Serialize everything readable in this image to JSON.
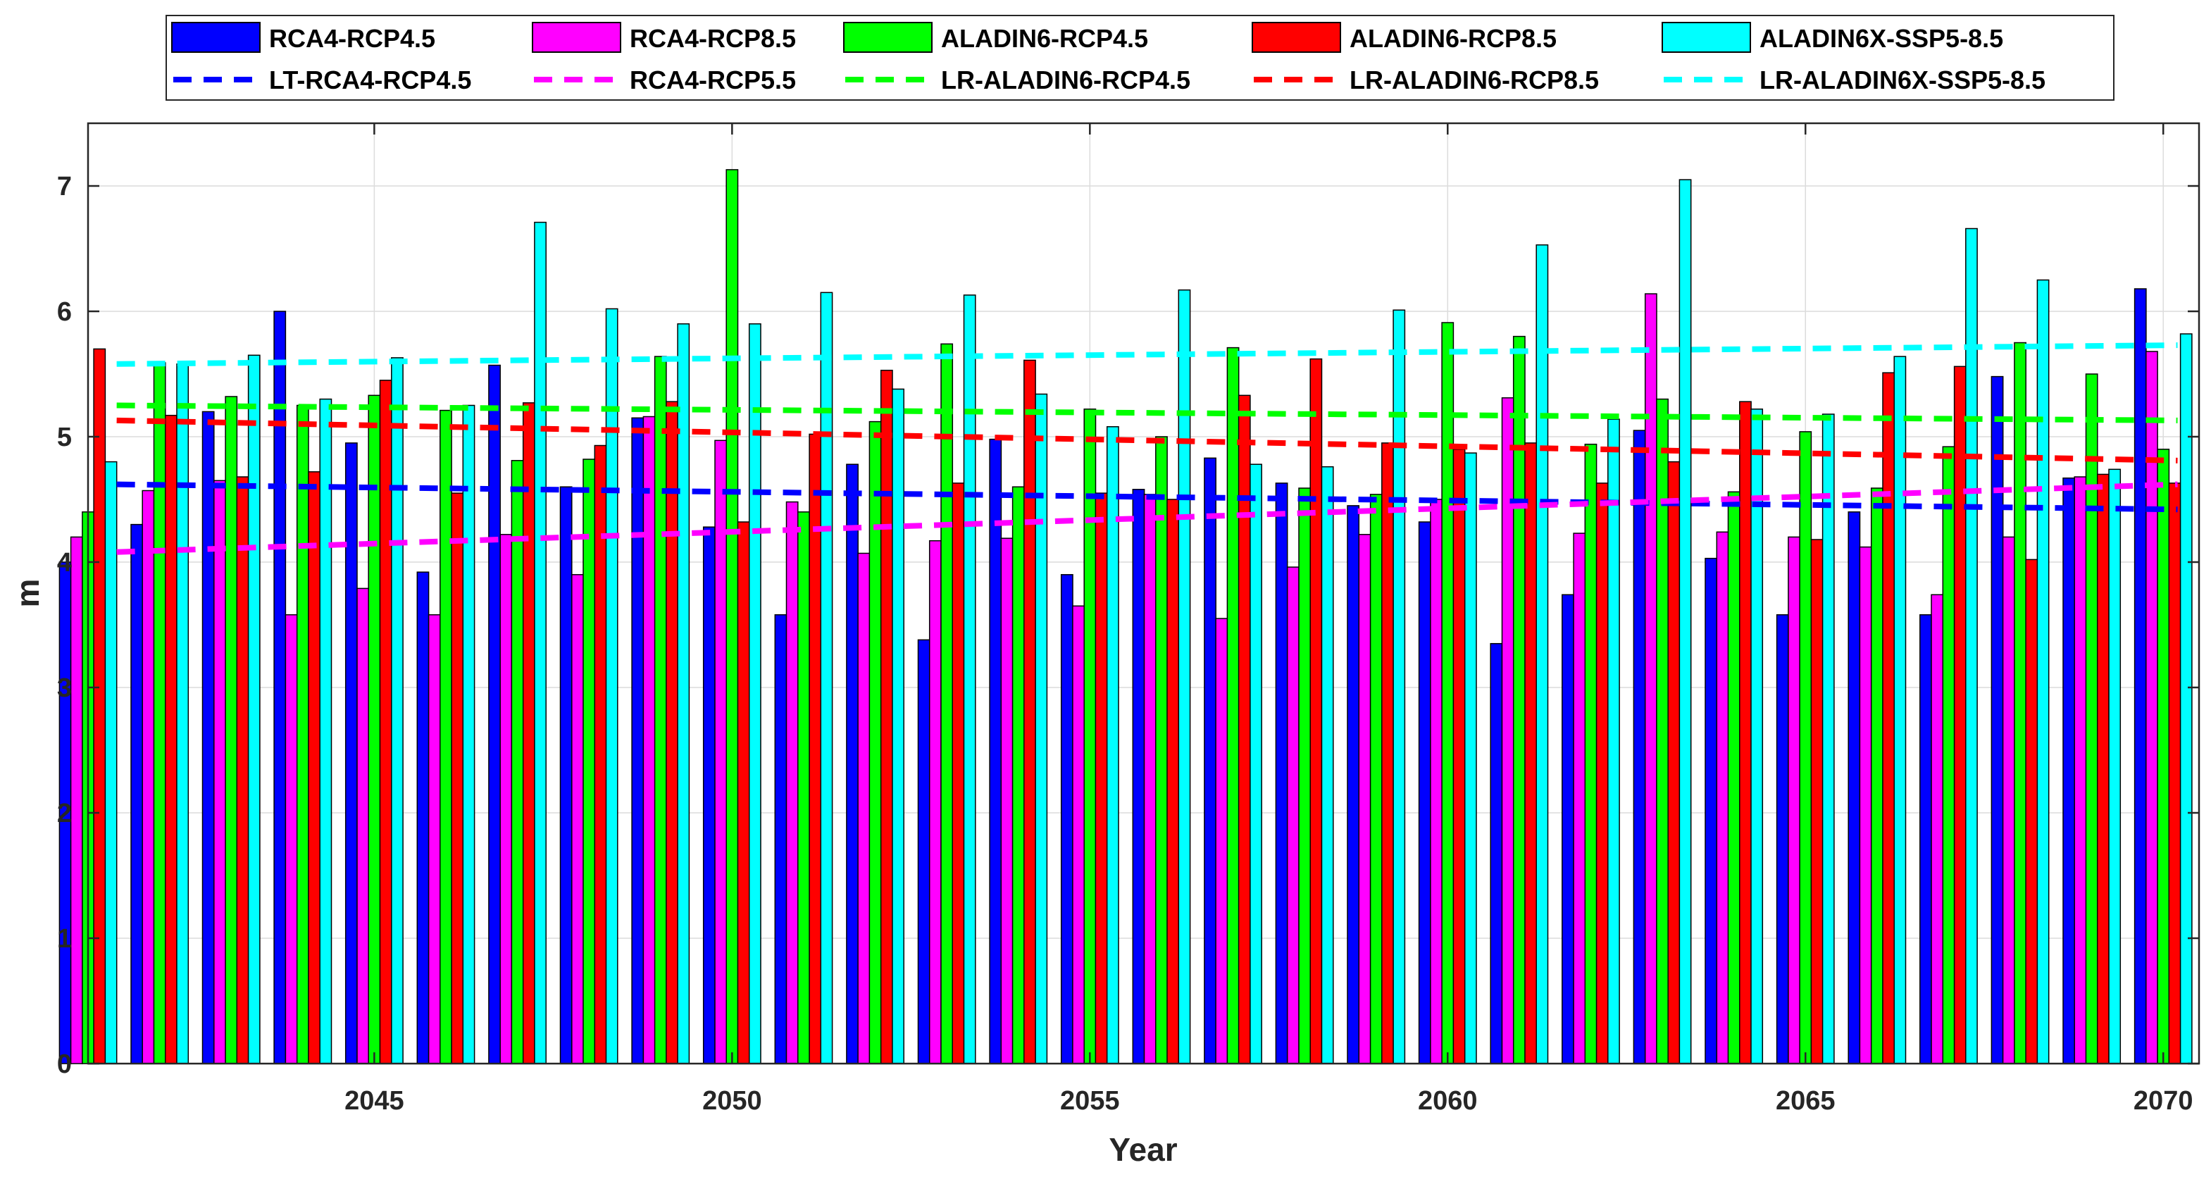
{
  "chart_data": {
    "type": "bar",
    "xlabel": "Year",
    "ylabel": "m",
    "ylim": [
      0,
      7.5
    ],
    "xlim": [
      2041,
      2070.5
    ],
    "x_ticks": [
      2045,
      2050,
      2055,
      2060,
      2065,
      2070
    ],
    "y_ticks": [
      0,
      1,
      2,
      3,
      4,
      5,
      6,
      7
    ],
    "grid": true,
    "legend_position": "top",
    "years": [
      2041,
      2042,
      2043,
      2044,
      2045,
      2046,
      2047,
      2048,
      2049,
      2050,
      2051,
      2052,
      2053,
      2054,
      2055,
      2056,
      2057,
      2058,
      2059,
      2060,
      2061,
      2062,
      2063,
      2064,
      2065,
      2066,
      2067,
      2068,
      2069,
      2070
    ],
    "series": [
      {
        "name": "RCA4-RCP4.5",
        "color": "#0000ff",
        "values": [
          4.0,
          4.3,
          5.2,
          6.0,
          4.95,
          3.92,
          5.57,
          4.6,
          5.15,
          4.28,
          3.58,
          4.78,
          3.38,
          4.98,
          3.9,
          4.58,
          4.83,
          4.63,
          4.45,
          4.32,
          3.35,
          3.74,
          5.05,
          4.03,
          3.58,
          4.4,
          3.58,
          5.48,
          4.67,
          6.18
        ]
      },
      {
        "name": "RCA4-RCP8.5",
        "color": "#ff00ff",
        "values": [
          4.2,
          4.57,
          4.65,
          3.58,
          3.79,
          3.58,
          4.22,
          3.9,
          5.16,
          4.97,
          4.48,
          4.07,
          4.17,
          4.19,
          3.65,
          4.54,
          3.55,
          3.96,
          4.22,
          4.5,
          5.31,
          4.23,
          6.14,
          4.24,
          4.2,
          4.12,
          3.74,
          4.2,
          4.68,
          5.68
        ]
      },
      {
        "name": "ALADIN6-RCP4.5",
        "color": "#00ff00",
        "values": [
          4.4,
          5.59,
          5.32,
          5.25,
          5.33,
          5.21,
          4.81,
          4.82,
          5.64,
          7.13,
          4.4,
          5.12,
          5.74,
          4.6,
          5.22,
          5.0,
          5.71,
          4.59,
          4.54,
          5.91,
          5.8,
          4.94,
          5.3,
          4.56,
          5.04,
          4.59,
          4.92,
          5.75,
          5.5,
          4.9
        ]
      },
      {
        "name": "ALADIN6-RCP8.5",
        "color": "#ff0000",
        "values": [
          5.7,
          5.17,
          4.68,
          4.72,
          5.45,
          4.55,
          5.27,
          4.93,
          5.28,
          4.32,
          5.02,
          5.53,
          4.63,
          5.61,
          4.55,
          4.5,
          5.33,
          5.62,
          4.95,
          4.9,
          4.95,
          4.63,
          4.8,
          5.28,
          4.18,
          5.51,
          5.56,
          4.02,
          4.7,
          4.63
        ]
      },
      {
        "name": "ALADIN6X-SSP5-8.5",
        "color": "#00ffff",
        "values": [
          4.8,
          5.58,
          5.65,
          5.3,
          5.63,
          5.25,
          6.71,
          6.02,
          5.9,
          5.9,
          6.15,
          5.38,
          6.13,
          5.34,
          5.08,
          6.17,
          4.78,
          4.76,
          6.01,
          4.87,
          6.53,
          5.14,
          7.05,
          5.22,
          5.18,
          5.64,
          6.66,
          6.25,
          4.74,
          5.82
        ]
      }
    ],
    "trend_lines": [
      {
        "name": "LT-RCA4-RCP4.5",
        "color": "#0000ff",
        "start": [
          2041.4,
          4.62
        ],
        "end": [
          2070.2,
          4.42
        ]
      },
      {
        "name": "RCA4-RCP5.5",
        "color": "#ff00ff",
        "start": [
          2041.4,
          4.08
        ],
        "end": [
          2070.2,
          4.62
        ]
      },
      {
        "name": "LR-ALADIN6-RCP4.5",
        "color": "#00ff00",
        "start": [
          2041.4,
          5.25
        ],
        "end": [
          2070.2,
          5.13
        ]
      },
      {
        "name": "LR-ALADIN6-RCP8.5",
        "color": "#ff0000",
        "start": [
          2041.4,
          5.13
        ],
        "end": [
          2070.2,
          4.81
        ]
      },
      {
        "name": "LR-ALADIN6X-SSP5-8.5",
        "color": "#00ffff",
        "start": [
          2041.4,
          5.58
        ],
        "end": [
          2070.2,
          5.73
        ]
      }
    ]
  }
}
